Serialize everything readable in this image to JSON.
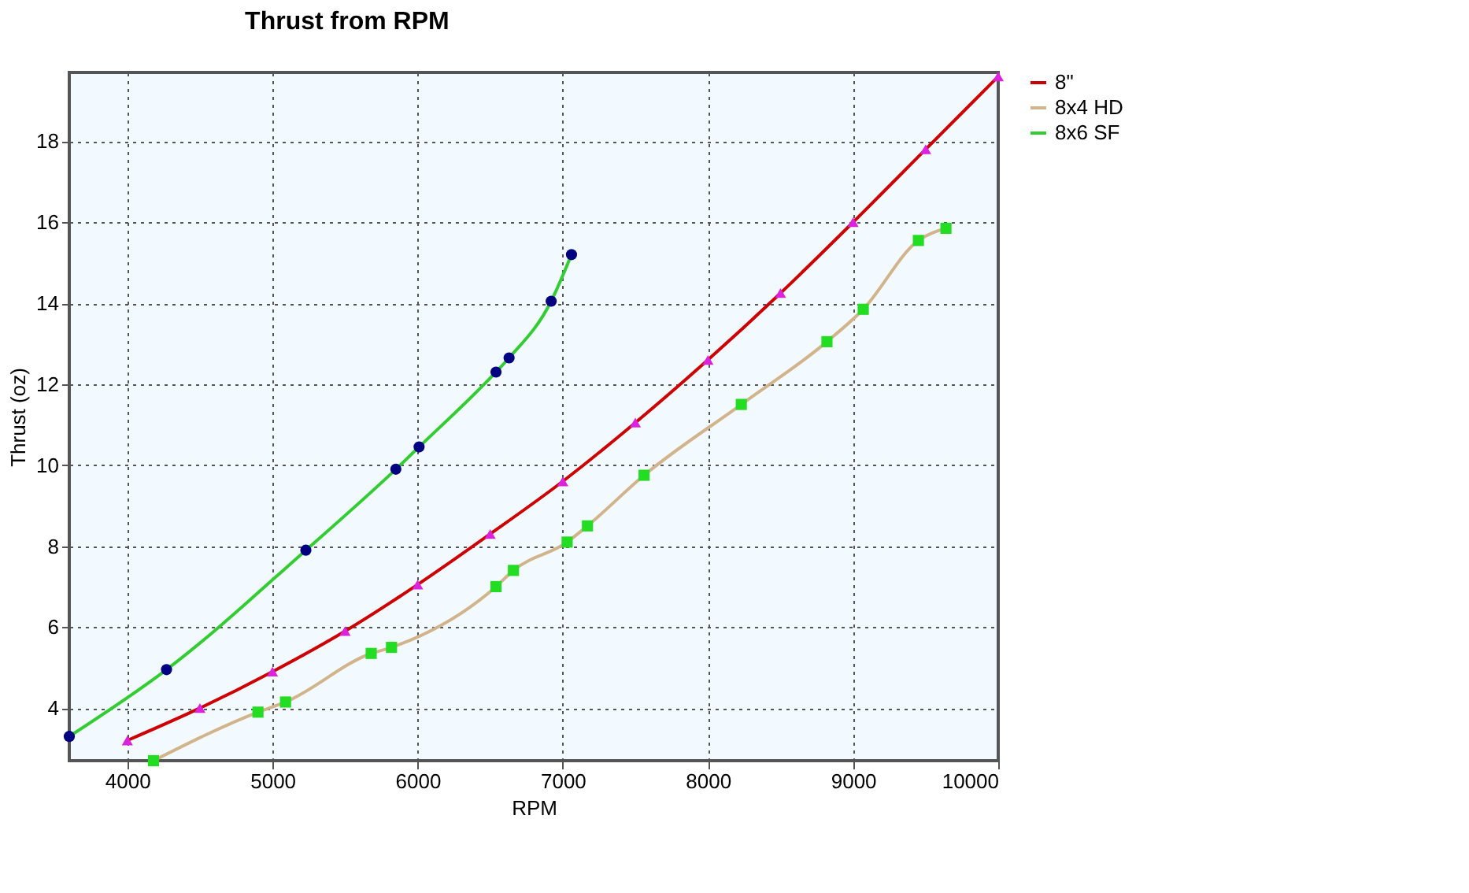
{
  "chart_data": {
    "type": "line",
    "title": "Thrust from RPM",
    "xlabel": "RPM",
    "ylabel": "Thrust (oz)",
    "xlim": [
      3600,
      10000
    ],
    "xticks": [
      4000,
      5000,
      6000,
      7000,
      8000,
      9000,
      10000
    ],
    "ylim": [
      2.7,
      19.7
    ],
    "yticks": [
      4,
      6,
      8,
      10,
      12,
      14,
      16,
      18
    ],
    "grid": true,
    "legend": "right",
    "series": [
      {
        "name": "8\"",
        "color": "#cc0000",
        "marker": "triangle",
        "x": [
          4000,
          4500,
          5000,
          5500,
          6000,
          6500,
          7000,
          7500,
          8000,
          8500,
          9000,
          9500,
          10000
        ],
        "values": [
          3.2,
          4.0,
          4.9,
          5.9,
          7.05,
          8.3,
          9.6,
          11.05,
          12.6,
          14.25,
          16.0,
          17.8,
          19.6
        ]
      },
      {
        "name": "8x4 HD",
        "color": "#d2b48c",
        "marker": "square",
        "x": [
          4180,
          4900,
          5090,
          5680,
          5820,
          6540,
          6660,
          7030,
          7170,
          7560,
          8230,
          8820,
          9070,
          9450,
          9640
        ],
        "values": [
          2.7,
          3.9,
          4.15,
          5.35,
          5.5,
          7.0,
          7.4,
          8.1,
          8.5,
          9.75,
          11.5,
          13.05,
          13.85,
          15.55,
          15.85
        ]
      },
      {
        "name": "8x6 SF",
        "color": "#33cc33",
        "marker": "circle",
        "x": [
          3600,
          4270,
          5230,
          5850,
          6010,
          6540,
          6630,
          6920,
          7060
        ],
        "values": [
          3.3,
          4.95,
          7.9,
          9.9,
          10.45,
          12.3,
          12.65,
          14.05,
          15.2
        ]
      }
    ]
  }
}
